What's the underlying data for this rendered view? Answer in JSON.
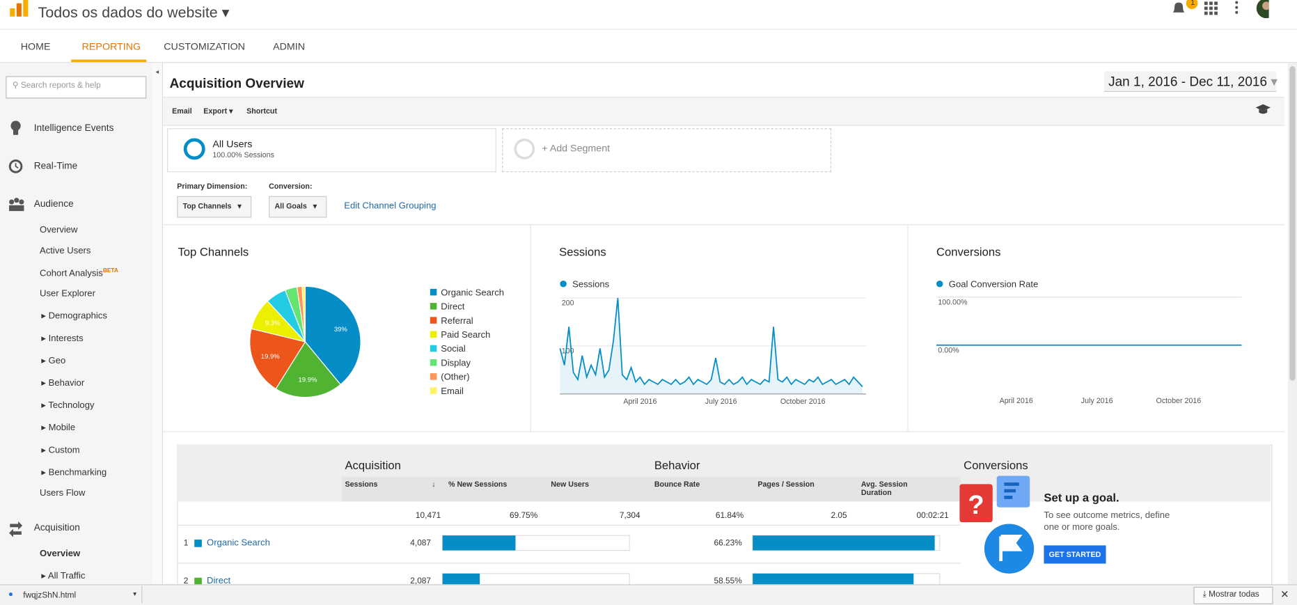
{
  "header": {
    "property": "Todos os dados do website",
    "notification_count": "1"
  },
  "nav": [
    "HOME",
    "REPORTING",
    "CUSTOMIZATION",
    "ADMIN"
  ],
  "sidebar": {
    "search_placeholder": "Search reports & help",
    "items": [
      "Intelligence Events",
      "Real-Time",
      "Audience",
      "Overview",
      "Active Users",
      "Cohort Analysis",
      "User Explorer",
      "Demographics",
      "Interests",
      "Geo",
      "Behavior",
      "Technology",
      "Mobile",
      "Custom",
      "Benchmarking",
      "Users Flow",
      "Acquisition",
      "Overview",
      "All Traffic"
    ],
    "beta_badge": "BETA"
  },
  "page": {
    "title": "Acquisition Overview",
    "date_range": "Jan 1, 2016 - Dec 11, 2016",
    "toolbar": [
      "Email",
      "Export",
      "Shortcut"
    ],
    "segment": {
      "name": "All Users",
      "detail": "100.00% Sessions",
      "add": "+ Add Segment"
    },
    "primary_dimension_label": "Primary Dimension:",
    "primary_dimension": "Top Channels",
    "conversion_label": "Conversion:",
    "conversion": "All Goals",
    "edit_link": "Edit Channel Grouping"
  },
  "chart_data": [
    {
      "type": "pie",
      "title": "Top Channels",
      "categories": [
        "Organic Search",
        "Direct",
        "Referral",
        "Paid Search",
        "Social",
        "Display",
        "(Other)",
        "Email"
      ],
      "values": [
        39,
        19.9,
        19.9,
        9.3,
        6,
        3.5,
        1.5,
        0.9
      ],
      "value_labels": [
        "39%",
        "19.9%",
        "19.9%",
        "9.3%",
        null,
        null,
        null,
        null
      ],
      "colors": [
        "#058dc7",
        "#50b432",
        "#ed561b",
        "#edef00",
        "#24cbe5",
        "#64e572",
        "#ff9655",
        "#fff263"
      ]
    },
    {
      "type": "line",
      "title": "Sessions",
      "x": [
        1,
        6,
        11,
        16,
        21,
        26,
        31,
        36,
        41,
        46,
        51,
        56,
        61,
        66,
        71,
        76,
        81,
        86,
        91,
        96,
        101,
        106,
        111,
        116,
        121,
        126,
        131,
        136,
        141,
        146,
        151,
        156,
        161,
        166,
        171,
        176,
        181,
        186,
        191,
        196,
        201,
        206,
        211,
        216,
        221,
        226,
        231,
        236,
        241,
        246,
        251,
        256,
        261,
        266,
        271,
        276,
        281,
        286,
        291,
        296,
        301,
        306,
        311,
        316,
        321,
        326,
        331,
        336,
        341
      ],
      "xlim": [
        1,
        345
      ],
      "xticks": [
        {
          "value": 91,
          "label": "April 2016"
        },
        {
          "value": 182,
          "label": "July 2016"
        },
        {
          "value": 274,
          "label": "October 2016"
        }
      ],
      "ylim": [
        0,
        200
      ],
      "yticks": [
        100,
        200
      ],
      "grid": true,
      "series": [
        {
          "name": "Sessions",
          "color": "#058dc7",
          "values": [
            95,
            60,
            140,
            45,
            30,
            80,
            35,
            60,
            40,
            95,
            35,
            50,
            110,
            200,
            40,
            30,
            55,
            25,
            35,
            20,
            30,
            25,
            20,
            30,
            25,
            20,
            30,
            20,
            25,
            35,
            20,
            30,
            25,
            20,
            30,
            75,
            25,
            20,
            30,
            20,
            25,
            35,
            20,
            30,
            25,
            20,
            30,
            25,
            140,
            30,
            25,
            35,
            20,
            30,
            25,
            20,
            30,
            25,
            35,
            20,
            25,
            30,
            20,
            25,
            30,
            20,
            35,
            25,
            15
          ]
        }
      ]
    },
    {
      "type": "line",
      "title": "Conversions",
      "x": [
        1,
        345
      ],
      "xlim": [
        1,
        345
      ],
      "xticks": [
        {
          "value": 91,
          "label": "April 2016"
        },
        {
          "value": 182,
          "label": "July 2016"
        },
        {
          "value": 274,
          "label": "October 2016"
        }
      ],
      "ylim": [
        0,
        100
      ],
      "yticks": [
        {
          "value": 0,
          "label": "0.00%"
        },
        {
          "value": 100,
          "label": "100.00%"
        }
      ],
      "grid": true,
      "series": [
        {
          "name": "Goal Conversion Rate",
          "color": "#058dc7",
          "values": [
            0,
            0
          ]
        }
      ]
    }
  ],
  "table": {
    "groups": [
      "Acquisition",
      "Behavior",
      "Conversions"
    ],
    "columns": [
      "Sessions",
      "% New Sessions",
      "New Users",
      "Bounce Rate",
      "Pages / Session",
      "Avg. Session Duration"
    ],
    "totals": {
      "sessions": 10471,
      "sessions_label": "10,471",
      "new_sessions": "69.75%",
      "new_users": "7,304",
      "bounce_rate": "61.84%",
      "pages_per_session": "2.05",
      "avg_duration": "00:02:21"
    },
    "rows": [
      {
        "rank": 1,
        "name": "Organic Search",
        "sessions": 4087,
        "sessions_label": "4,087",
        "bounce_rate": 66.23,
        "bounce_rate_label": "66.23%"
      },
      {
        "rank": 2,
        "name": "Direct",
        "sessions": 2087,
        "sessions_label": "2,087",
        "bounce_rate": 58.55,
        "bounce_rate_label": "58.55%"
      }
    ]
  },
  "goal_panel": {
    "title": "Set up a goal.",
    "text": "To see outcome metrics, define one or more goals.",
    "button": "GET STARTED"
  },
  "download_bar": {
    "file": "fwqjzShN.html",
    "show_all": "Mostrar todas"
  }
}
